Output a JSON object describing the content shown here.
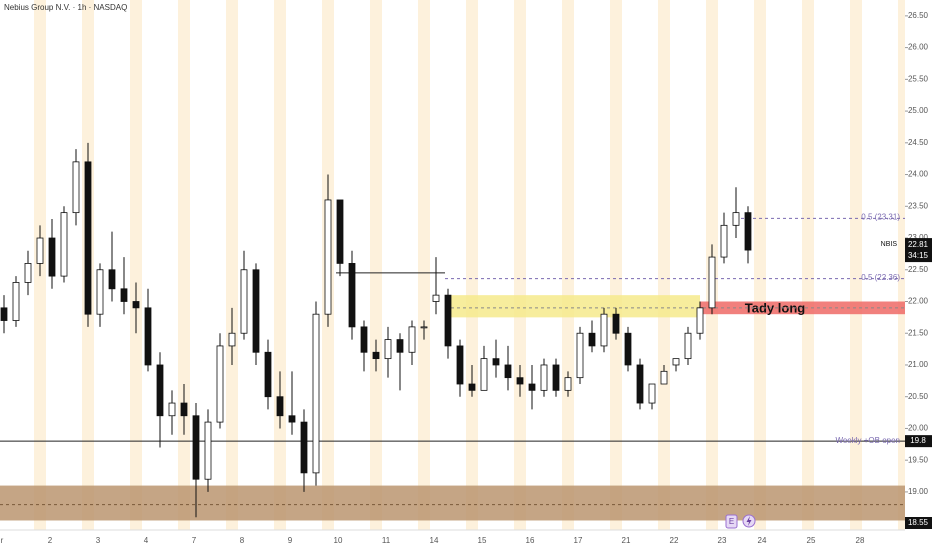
{
  "chart_data": {
    "type": "candlestick",
    "title": "Nebius Group N.V. · 1h · NASDAQ",
    "symbol": "NBIS",
    "countdown": "34:15",
    "categories": [
      "r",
      null,
      null,
      null,
      "2",
      null,
      null,
      null,
      "3",
      null,
      null,
      null,
      "4",
      null,
      null,
      null,
      "7",
      null,
      null,
      null,
      "8",
      null,
      null,
      null,
      "9",
      null,
      null,
      null,
      "10",
      null,
      null,
      null,
      "11",
      null,
      null,
      null,
      "14",
      null,
      null,
      null,
      "15",
      null,
      null,
      null,
      "16",
      null,
      null,
      null,
      "17",
      null,
      null,
      null,
      "21",
      null,
      null,
      null,
      "22",
      null,
      null,
      null,
      "23",
      null,
      null
    ],
    "future_categories": [
      "24",
      "25",
      "28"
    ],
    "open": [
      21.9,
      21.7,
      22.3,
      22.6,
      23.0,
      22.4,
      23.4,
      24.2,
      21.8,
      22.5,
      22.2,
      22.0,
      21.9,
      21.0,
      20.2,
      20.4,
      20.2,
      19.2,
      20.1,
      21.3,
      21.5,
      22.5,
      21.2,
      20.5,
      20.2,
      20.1,
      19.3,
      21.8,
      23.6,
      22.6,
      21.6,
      21.2,
      21.1,
      21.4,
      21.2,
      21.6,
      22.0,
      22.1,
      21.3,
      20.7,
      20.6,
      21.1,
      21.0,
      20.8,
      20.7,
      20.6,
      21.0,
      20.6,
      20.8,
      21.5,
      21.3,
      21.8,
      21.5,
      21.0,
      20.4,
      20.7,
      21.0,
      21.1,
      21.5,
      21.9,
      22.7,
      23.2,
      23.4
    ],
    "high": [
      22.1,
      22.4,
      22.8,
      23.2,
      23.3,
      23.5,
      24.4,
      24.5,
      22.6,
      23.1,
      22.7,
      22.3,
      22.2,
      21.2,
      20.6,
      20.7,
      20.4,
      20.3,
      21.5,
      21.9,
      22.8,
      22.6,
      21.4,
      20.9,
      20.9,
      20.3,
      22.0,
      24.0,
      23.6,
      22.8,
      21.7,
      21.4,
      21.6,
      21.5,
      21.7,
      21.7,
      22.7,
      22.2,
      21.4,
      21.0,
      21.3,
      21.4,
      21.3,
      21.0,
      21.0,
      21.1,
      21.1,
      20.9,
      21.6,
      21.7,
      21.9,
      21.9,
      21.6,
      21.1,
      20.7,
      21.0,
      21.1,
      21.6,
      22.0,
      22.9,
      23.4,
      23.8,
      23.5
    ],
    "low": [
      21.5,
      21.6,
      22.1,
      22.4,
      22.2,
      22.3,
      23.2,
      21.6,
      21.6,
      22.0,
      21.8,
      21.5,
      20.9,
      19.7,
      19.9,
      19.9,
      18.6,
      19.0,
      20.0,
      21.0,
      21.4,
      21.0,
      20.3,
      20.0,
      19.9,
      19.0,
      19.1,
      21.6,
      22.4,
      21.4,
      20.9,
      20.9,
      20.8,
      20.6,
      21.0,
      21.4,
      21.8,
      21.1,
      20.5,
      20.5,
      20.6,
      20.8,
      20.6,
      20.5,
      20.3,
      20.5,
      20.5,
      20.5,
      20.7,
      21.2,
      21.2,
      21.4,
      20.9,
      20.3,
      20.3,
      20.7,
      20.9,
      21.0,
      21.4,
      21.8,
      22.6,
      23.0,
      22.6
    ],
    "close": [
      21.7,
      22.3,
      22.6,
      23.0,
      22.4,
      23.4,
      24.2,
      21.8,
      22.5,
      22.2,
      22.0,
      21.9,
      21.0,
      20.2,
      20.4,
      20.2,
      19.2,
      20.1,
      21.3,
      21.5,
      22.5,
      21.2,
      20.5,
      20.2,
      20.1,
      19.3,
      21.8,
      23.6,
      22.6,
      21.6,
      21.2,
      21.1,
      21.4,
      21.2,
      21.6,
      21.6,
      22.1,
      21.3,
      20.7,
      20.6,
      21.1,
      21.0,
      20.8,
      20.7,
      20.6,
      21.0,
      20.6,
      20.8,
      21.5,
      21.3,
      21.8,
      21.5,
      21.0,
      20.4,
      20.7,
      20.9,
      21.1,
      21.5,
      21.9,
      22.7,
      23.2,
      23.4,
      22.81
    ],
    "ylim": [
      18.4,
      26.75
    ],
    "yticks": [
      {
        "value": 19.0,
        "label": "19.00"
      },
      {
        "value": 19.5,
        "label": "19.50"
      },
      {
        "value": 20.0,
        "label": "20.00"
      },
      {
        "value": 20.5,
        "label": "20.50"
      },
      {
        "value": 21.0,
        "label": "21.00"
      },
      {
        "value": 21.5,
        "label": "21.50"
      },
      {
        "value": 22.0,
        "label": "22.00"
      },
      {
        "value": 22.5,
        "label": "22.50"
      },
      {
        "value": 23.0,
        "label": "23.00"
      },
      {
        "value": 23.5,
        "label": "23.50"
      },
      {
        "value": 24.0,
        "label": "24.00"
      },
      {
        "value": 24.5,
        "label": "24.50"
      },
      {
        "value": 25.0,
        "label": "25.00"
      },
      {
        "value": 25.5,
        "label": "25.50"
      },
      {
        "value": 26.0,
        "label": "26.00"
      },
      {
        "value": 26.5,
        "label": "26.50"
      }
    ],
    "up_color": "#ffffff",
    "down_color": "#111111",
    "zones": [
      {
        "top": 22.1,
        "bottom": 21.75,
        "color": "#f6ea8c"
      },
      {
        "top": 22.0,
        "bottom": 21.8,
        "color": "#ef6a66",
        "label": "Tady long"
      },
      {
        "top": 19.1,
        "bottom": 18.55,
        "color": "#bb9570"
      }
    ],
    "levels": [
      {
        "value": 22.45
      },
      {
        "value": 19.8,
        "label": "Weekly +OB open"
      }
    ],
    "fib_levels": [
      {
        "value": 23.31,
        "label": "0.5 (23.31)"
      },
      {
        "value": 22.36,
        "label": "0.5 (22.36)"
      }
    ],
    "events": [
      "E"
    ]
  }
}
